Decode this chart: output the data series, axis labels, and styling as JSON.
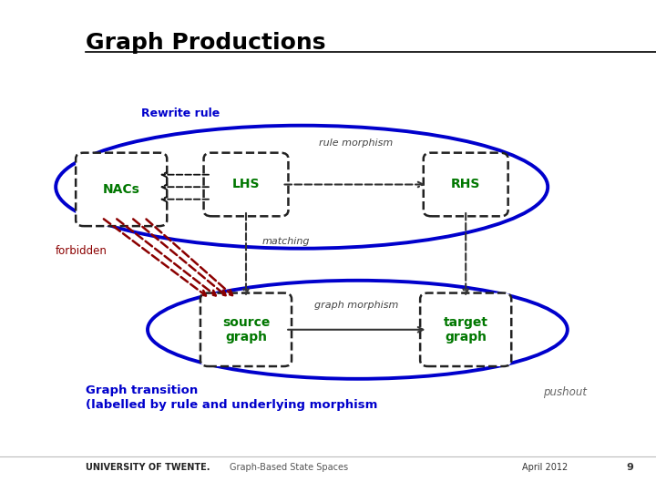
{
  "title": "Graph Productions",
  "bg_color": "#ffffff",
  "title_color": "#000000",
  "title_fontsize": 18,
  "rewrite_rule_label": "Rewrite rule",
  "rewrite_rule_color": "#0000cc",
  "graph_transition_line1": "Graph transition",
  "graph_transition_line2": "(labelled by rule and underlying morphism",
  "graph_transition_color": "#0000cc",
  "pushout_label": "pushout",
  "pushout_color": "#666666",
  "rule_morphism_label": "rule morphism",
  "matching_label": "matching",
  "graph_morphism_label": "graph morphism",
  "forbidden_label": "forbidden",
  "node_color": "#007700",
  "arrow_color": "#222222",
  "forbidden_color": "#8B0000",
  "dashed_color": "#333333",
  "footer_university": "UNIVERSITY OF TWENTE.",
  "footer_subtitle": "Graph-Based State Spaces",
  "footer_date": "April 2012",
  "footer_page": "9"
}
